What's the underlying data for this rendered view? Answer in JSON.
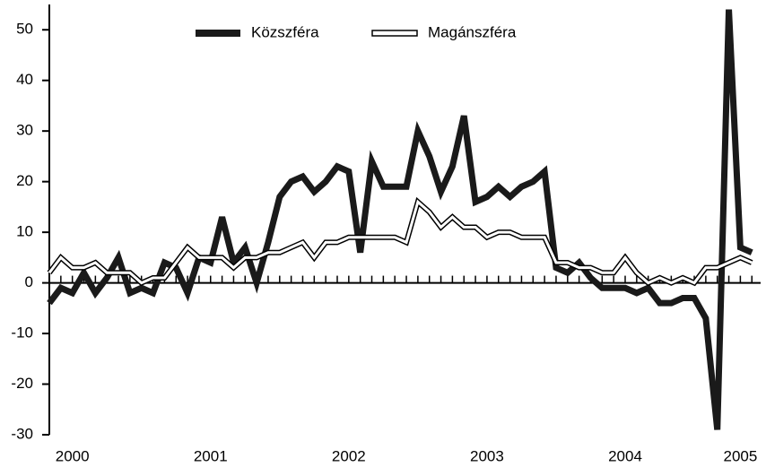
{
  "chart_data": {
    "type": "line",
    "categories": [
      null,
      null,
      "2000",
      null,
      null,
      null,
      null,
      null,
      null,
      null,
      null,
      null,
      null,
      null,
      "2001",
      null,
      null,
      null,
      null,
      null,
      null,
      null,
      null,
      null,
      null,
      null,
      "2002",
      null,
      null,
      null,
      null,
      null,
      null,
      null,
      null,
      null,
      null,
      null,
      "2003",
      null,
      null,
      null,
      null,
      null,
      null,
      null,
      null,
      null,
      null,
      null,
      "2004",
      null,
      null,
      null,
      null,
      null,
      null,
      null,
      null,
      null,
      "2005",
      null
    ],
    "series": [
      {
        "name": "Közszféra",
        "color": "#1a1a1a",
        "values": [
          -4,
          -1,
          -2,
          2,
          -2,
          1,
          5,
          -2,
          -1,
          -2,
          4,
          3,
          -2,
          5,
          4,
          13,
          4,
          7,
          0,
          8,
          17,
          20,
          21,
          18,
          20,
          23,
          22,
          6,
          24,
          19,
          19,
          19,
          30,
          25,
          18,
          23,
          33,
          16,
          17,
          19,
          17,
          19,
          20,
          22,
          3,
          2,
          4,
          1,
          -1,
          -1,
          -1,
          -2,
          -1,
          -4,
          -4,
          -3,
          -3,
          -7,
          -29,
          54,
          7,
          6
        ]
      },
      {
        "name": "Magánszféra",
        "color": "#ffffff",
        "values": [
          2,
          5,
          3,
          3,
          4,
          2,
          2,
          2,
          0,
          1,
          1,
          4,
          7,
          5,
          5,
          5,
          3,
          5,
          5,
          6,
          6,
          7,
          8,
          5,
          8,
          8,
          9,
          9,
          9,
          9,
          9,
          8,
          16,
          14,
          11,
          13,
          11,
          11,
          9,
          10,
          10,
          9,
          9,
          9,
          4,
          4,
          3,
          3,
          2,
          2,
          5,
          2,
          0,
          1,
          0,
          1,
          0,
          3,
          3,
          4,
          5,
          4
        ]
      }
    ],
    "ylim": [
      -30,
      55
    ],
    "yticks": [
      -30,
      -20,
      -10,
      0,
      10,
      20,
      30,
      40,
      50
    ],
    "legend": "top"
  }
}
